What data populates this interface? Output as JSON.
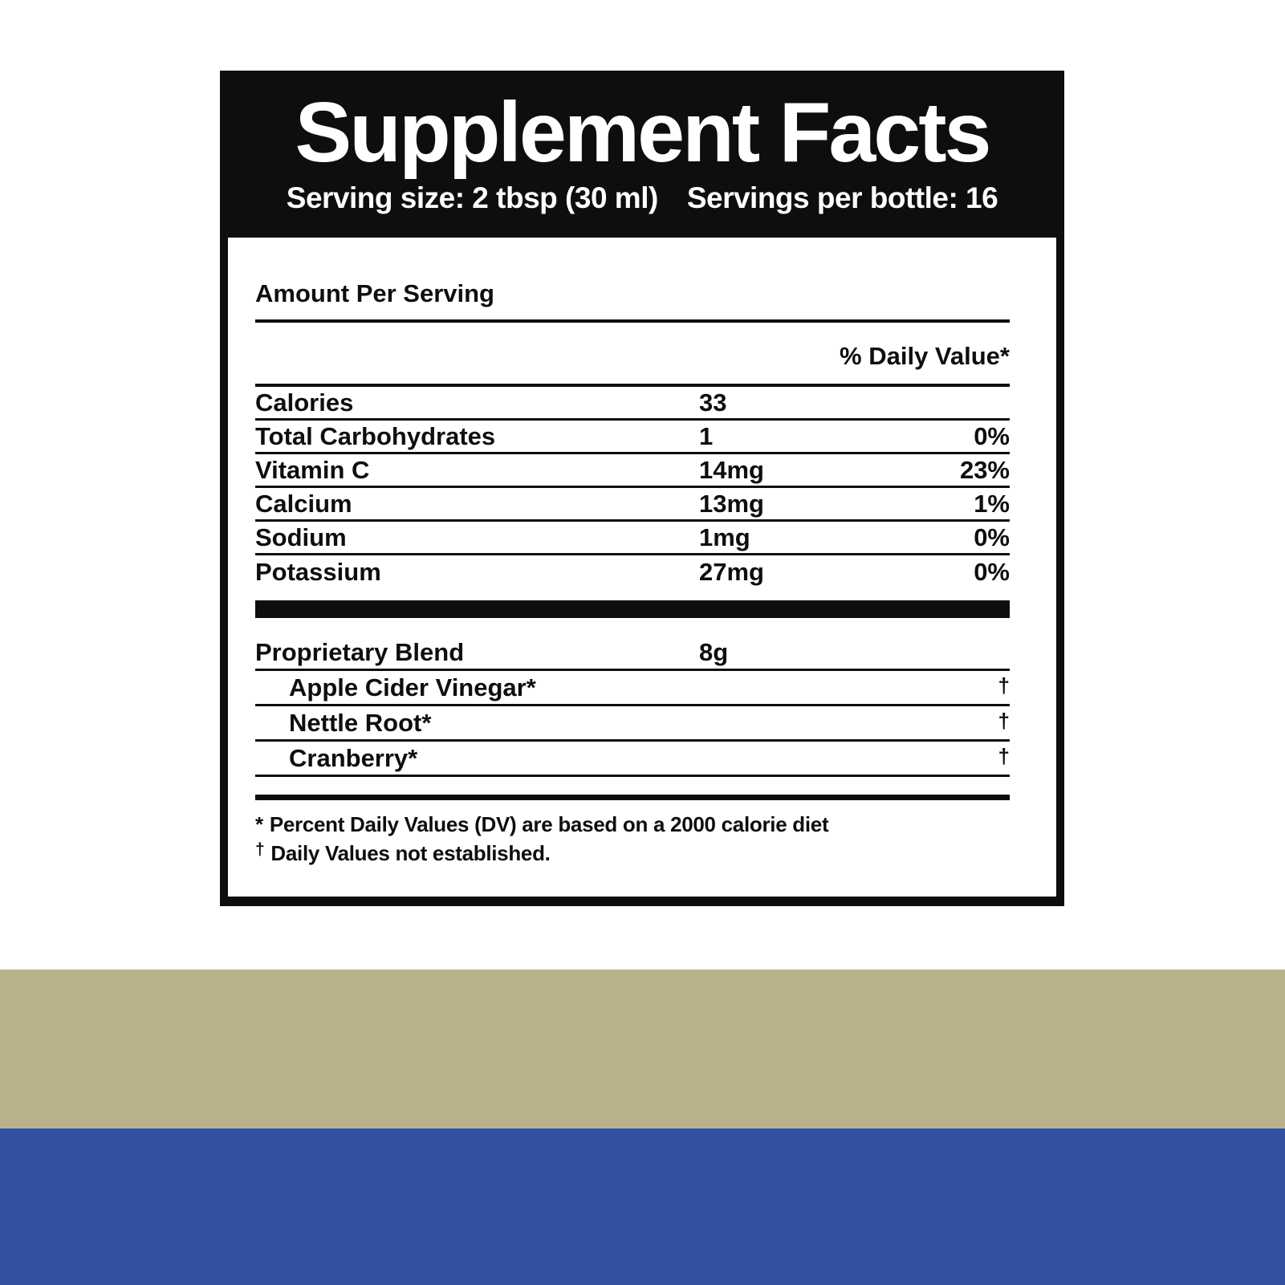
{
  "header": {
    "title": "Supplement Facts",
    "serving_size": "Serving size: 2 tbsp (30 ml)",
    "servings_per_bottle": "Servings per bottle: 16"
  },
  "table": {
    "amount_per_serving_label": "Amount Per Serving",
    "daily_value_label": "% Daily Value*",
    "nutrients": [
      {
        "name": "Calories",
        "amount": "33",
        "dv": ""
      },
      {
        "name": "Total Carbohydrates",
        "amount": "1",
        "dv": "0%"
      },
      {
        "name": "Vitamin C",
        "amount": "14mg",
        "dv": "23%"
      },
      {
        "name": "Calcium",
        "amount": "13mg",
        "dv": "1%"
      },
      {
        "name": "Sodium",
        "amount": "1mg",
        "dv": "0%"
      },
      {
        "name": "Potassium",
        "amount": "27mg",
        "dv": "0%"
      }
    ],
    "blend": {
      "name": "Proprietary Blend",
      "amount": "8g",
      "ingredients": [
        {
          "name": "Apple Cider Vinegar*",
          "dv": "†"
        },
        {
          "name": "Nettle Root*",
          "dv": "†"
        },
        {
          "name": "Cranberry*",
          "dv": "†"
        }
      ]
    }
  },
  "footnotes": {
    "dv_symbol": "*",
    "dv_text": "Percent Daily Values (DV) are based on a 2000 calorie diet",
    "ne_symbol": "†",
    "ne_text": "Daily Values not established."
  },
  "colors": {
    "label_black": "#0e0e0e",
    "khaki_band": "#b8b28a",
    "blue_band": "#3351a1"
  }
}
